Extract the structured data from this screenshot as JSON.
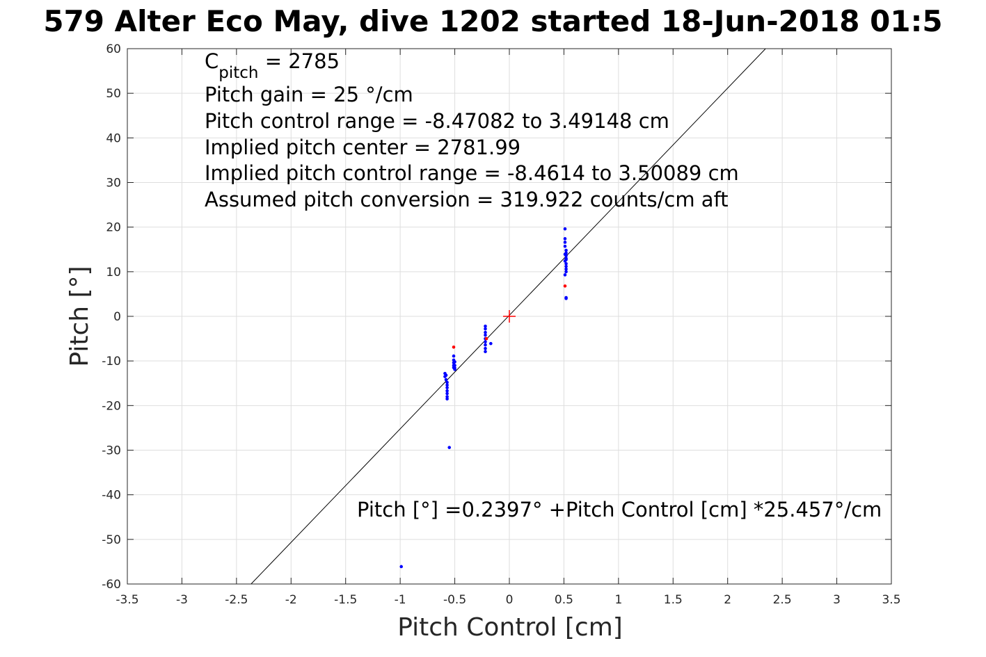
{
  "chart_data": {
    "type": "scatter",
    "title": "579 Alter Eco May, dive 1202 started 18-Jun-2018 01:5",
    "xlabel": "Pitch Control [cm]",
    "ylabel": "Pitch [°]",
    "xlim": [
      -3.5,
      3.5
    ],
    "ylim": [
      -60,
      60
    ],
    "xticks": [
      "-3.5",
      "-3",
      "-2.5",
      "-2",
      "-1.5",
      "-1",
      "-0.5",
      "0",
      "0.5",
      "1",
      "1.5",
      "2",
      "2.5",
      "3",
      "3.5"
    ],
    "yticks": [
      "60",
      "50",
      "40",
      "30",
      "20",
      "10",
      "0",
      "-10",
      "-20",
      "-30",
      "-40",
      "-50",
      "-60"
    ],
    "grid": true,
    "annotations": {
      "c_pitch_symbol": "C",
      "c_pitch_subscript": "pitch",
      "c_pitch_value": " = 2785",
      "pitch_gain": "Pitch gain = 25 °/cm",
      "control_range": "Pitch control range = -8.47082 to 3.49148 cm",
      "implied_center": "Implied pitch center = 2781.99",
      "implied_range": "Implied pitch control range = -8.4614 to 3.50089 cm",
      "conversion": "Assumed pitch conversion = 319.922 counts/cm aft",
      "fit_equation": "Pitch [°] =0.2397° +Pitch Control [cm] *25.457°/cm"
    },
    "fit": {
      "intercept": 0.2397,
      "slope": 25.457,
      "color": "#000000"
    },
    "center_marker": {
      "x": 0,
      "y": 0,
      "color": "#ff0000"
    },
    "series": [
      {
        "color": "#0000ff",
        "points": [
          [
            -0.99,
            -56.1
          ],
          [
            -0.55,
            -29.4
          ],
          [
            -0.59,
            -12.8
          ],
          [
            -0.59,
            -13.5
          ],
          [
            -0.58,
            -13.2
          ],
          [
            -0.58,
            -14.2
          ],
          [
            -0.57,
            -14.8
          ],
          [
            -0.57,
            -15.4
          ],
          [
            -0.57,
            -16.0
          ],
          [
            -0.57,
            -16.7
          ],
          [
            -0.57,
            -17.3
          ],
          [
            -0.57,
            -18.0
          ],
          [
            -0.57,
            -18.5
          ],
          [
            -0.51,
            -8.9
          ],
          [
            -0.51,
            -9.8
          ],
          [
            -0.51,
            -10.4
          ],
          [
            -0.51,
            -11.0
          ],
          [
            -0.51,
            -11.5
          ],
          [
            -0.5,
            -10.2
          ],
          [
            -0.5,
            -11.0
          ],
          [
            -0.5,
            -11.6
          ],
          [
            -0.5,
            -11.9
          ],
          [
            -0.22,
            -2.2
          ],
          [
            -0.22,
            -2.8
          ],
          [
            -0.22,
            -3.6
          ],
          [
            -0.22,
            -4.2
          ],
          [
            -0.22,
            -5.0
          ],
          [
            -0.22,
            -5.7
          ],
          [
            -0.22,
            -6.4
          ],
          [
            -0.22,
            -7.2
          ],
          [
            -0.22,
            -7.9
          ],
          [
            -0.17,
            -6.1
          ],
          [
            0.51,
            19.6
          ],
          [
            0.51,
            17.4
          ],
          [
            0.51,
            16.6
          ],
          [
            0.51,
            15.7
          ],
          [
            0.52,
            14.8
          ],
          [
            0.52,
            14.2
          ],
          [
            0.52,
            13.6
          ],
          [
            0.52,
            13.0
          ],
          [
            0.51,
            12.4
          ],
          [
            0.52,
            11.8
          ],
          [
            0.52,
            11.2
          ],
          [
            0.52,
            10.6
          ],
          [
            0.52,
            10.0
          ],
          [
            0.51,
            13.9
          ],
          [
            0.52,
            12.7
          ],
          [
            0.51,
            9.3
          ],
          [
            0.52,
            4.2
          ],
          [
            0.52,
            4.0
          ]
        ]
      },
      {
        "color": "#ff0000",
        "points": [
          [
            -0.51,
            -6.9
          ],
          [
            -0.21,
            -5.0
          ],
          [
            0.51,
            6.8
          ]
        ]
      }
    ]
  }
}
